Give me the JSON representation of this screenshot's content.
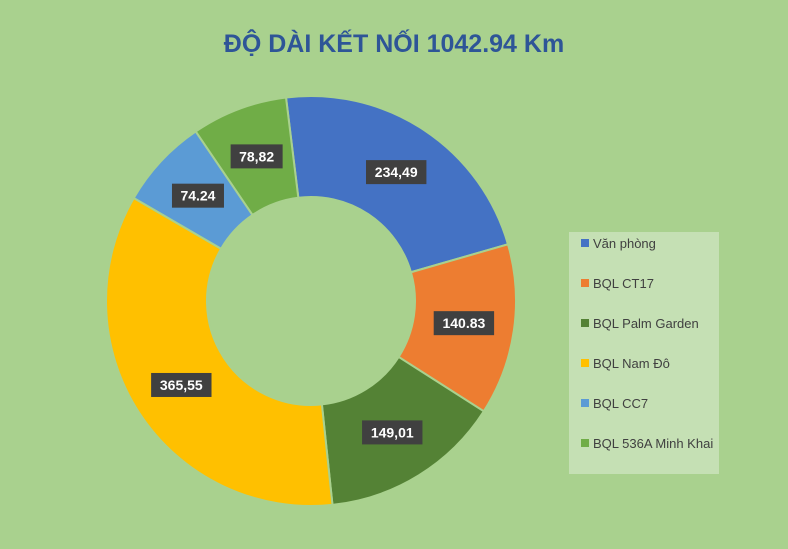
{
  "chart_data": {
    "type": "pie",
    "title": "ĐỘ DÀI KẾT NỐI 1042.94 Km",
    "donut": true,
    "legend_position": "right",
    "slices": [
      {
        "name": "Văn phòng",
        "value": 234.49,
        "label": "234,49",
        "color": "#4472c4"
      },
      {
        "name": "BQL CT17",
        "value": 140.83,
        "label": "140.83",
        "color": "#ed7d31"
      },
      {
        "name": "BQL Palm Garden",
        "value": 149.01,
        "label": "149,01",
        "color": "#548235"
      },
      {
        "name": "BQL Nam Đô",
        "value": 365.55,
        "label": "365,55",
        "color": "#ffc000"
      },
      {
        "name": "BQL CC7",
        "value": 74.24,
        "label": "74.24",
        "color": "#5b9bd5"
      },
      {
        "name": "BQL 536A Minh Khai",
        "value": 78.82,
        "label": "78,82",
        "color": "#70ad47"
      }
    ]
  },
  "colors": {
    "background": "#a9d18e",
    "title": "#2e5597",
    "legend_background": "#c5e0b4",
    "label_box": "#404040"
  }
}
